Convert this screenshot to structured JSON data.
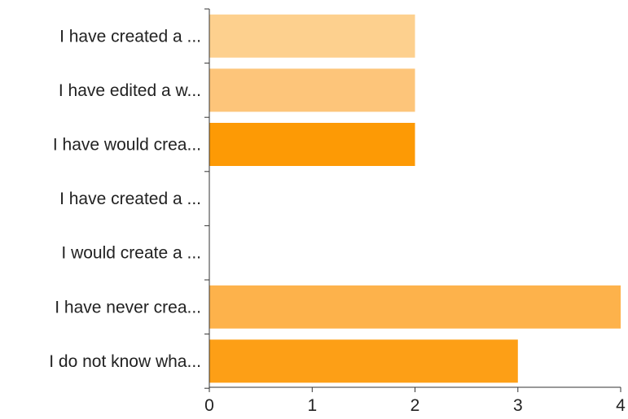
{
  "chart_data": {
    "type": "bar",
    "orientation": "horizontal",
    "categories": [
      "I have created a ...",
      "I have edited a w...",
      "I have would crea...",
      "I have created a ...",
      "I would create a ...",
      "I have never crea...",
      "I do not know wha..."
    ],
    "values": [
      2,
      2,
      2,
      0,
      0,
      4,
      3
    ],
    "colors": [
      "#fdd08e",
      "#fdc57a",
      "#fd9a05",
      "#fdb13f",
      "#fdbc5c",
      "#fdb24b",
      "#fd9f16"
    ],
    "xlim": [
      0,
      4
    ],
    "xticks": [
      0,
      1,
      2,
      3,
      4
    ],
    "title": "",
    "xlabel": "",
    "ylabel": "",
    "grid": false,
    "legend": "none"
  }
}
